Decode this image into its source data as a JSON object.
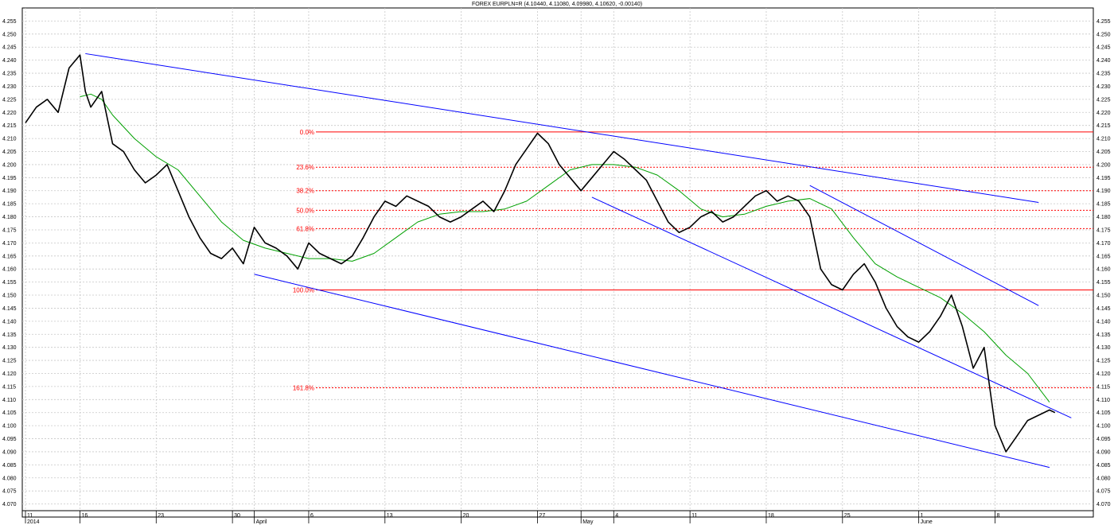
{
  "chart_data": {
    "type": "line",
    "title": "FOREX EURPLN=R (4.10440, 4.11080, 4.09980, 4.10620, -0.00140)",
    "ylim": [
      4.065,
      4.26
    ],
    "y_ticks": [
      "4.070",
      "4.075",
      "4.080",
      "4.085",
      "4.090",
      "4.095",
      "4.100",
      "4.105",
      "4.110",
      "4.115",
      "4.120",
      "4.125",
      "4.130",
      "4.135",
      "4.140",
      "4.145",
      "4.150",
      "4.155",
      "4.160",
      "4.165",
      "4.170",
      "4.175",
      "4.180",
      "4.185",
      "4.190",
      "4.195",
      "4.200",
      "4.205",
      "4.210",
      "4.215",
      "4.220",
      "4.225",
      "4.230",
      "4.235",
      "4.240",
      "4.245",
      "4.250",
      "4.255"
    ],
    "xlim": [
      0,
      97
    ],
    "x_ticks": [
      {
        "t": 0,
        "label": "11",
        "sub": "2014"
      },
      {
        "t": 5,
        "label": "16",
        "sub": ""
      },
      {
        "t": 12,
        "label": "23",
        "sub": ""
      },
      {
        "t": 19,
        "label": "30",
        "sub": ""
      },
      {
        "t": 21,
        "label": "",
        "sub": "April"
      },
      {
        "t": 26,
        "label": "6",
        "sub": ""
      },
      {
        "t": 33,
        "label": "13",
        "sub": ""
      },
      {
        "t": 40,
        "label": "20",
        "sub": ""
      },
      {
        "t": 47,
        "label": "27",
        "sub": ""
      },
      {
        "t": 51,
        "label": "",
        "sub": "May"
      },
      {
        "t": 54,
        "label": "4",
        "sub": ""
      },
      {
        "t": 61,
        "label": "11",
        "sub": ""
      },
      {
        "t": 68,
        "label": "18",
        "sub": ""
      },
      {
        "t": 75,
        "label": "25",
        "sub": ""
      },
      {
        "t": 82,
        "label": "1",
        "sub": "June"
      },
      {
        "t": 89,
        "label": "8",
        "sub": ""
      }
    ],
    "series": [
      {
        "role": "price",
        "color": "#000000",
        "x": [
          0,
          1,
          2,
          3,
          4,
          5,
          5.5,
          6,
          7,
          8,
          9,
          10,
          11,
          12,
          13,
          14,
          15,
          16,
          17,
          18,
          19,
          20,
          21,
          22,
          23,
          24,
          25,
          26,
          27,
          28,
          29,
          30,
          31,
          32,
          33,
          34,
          35,
          36,
          37,
          38,
          39,
          40,
          41,
          42,
          43,
          44,
          45,
          46,
          47,
          48,
          49,
          50,
          51,
          52,
          53,
          54,
          55,
          56,
          57,
          58,
          59,
          60,
          61,
          62,
          63,
          64,
          65,
          66,
          67,
          68,
          69,
          70,
          71,
          72,
          73,
          74,
          75,
          76,
          77,
          78,
          79,
          80,
          81,
          82,
          83,
          84,
          85,
          86,
          87,
          88,
          89,
          90,
          91,
          92,
          93,
          94,
          94.5
        ],
        "values": [
          4.216,
          4.222,
          4.225,
          4.22,
          4.237,
          4.242,
          4.228,
          4.222,
          4.228,
          4.208,
          4.205,
          4.198,
          4.193,
          4.196,
          4.2,
          4.19,
          4.18,
          4.172,
          4.166,
          4.164,
          4.168,
          4.162,
          4.176,
          4.17,
          4.168,
          4.165,
          4.16,
          4.17,
          4.166,
          4.164,
          4.162,
          4.165,
          4.172,
          4.18,
          4.186,
          4.184,
          4.188,
          4.186,
          4.184,
          4.18,
          4.178,
          4.18,
          4.183,
          4.186,
          4.182,
          4.19,
          4.2,
          4.206,
          4.212,
          4.208,
          4.2,
          4.195,
          4.19,
          4.195,
          4.2,
          4.205,
          4.202,
          4.198,
          4.194,
          4.186,
          4.178,
          4.174,
          4.176,
          4.18,
          4.182,
          4.178,
          4.18,
          4.184,
          4.188,
          4.19,
          4.186,
          4.188,
          4.186,
          4.18,
          4.16,
          4.154,
          4.152,
          4.158,
          4.162,
          4.155,
          4.145,
          4.138,
          4.134,
          4.132,
          4.136,
          4.142,
          4.15,
          4.138,
          4.122,
          4.13,
          4.1,
          4.09,
          4.096,
          4.102,
          4.104,
          4.106,
          4.105
        ]
      },
      {
        "role": "moving-average",
        "color": "#00a000",
        "x": [
          5,
          6,
          7,
          8,
          10,
          12,
          14,
          16,
          18,
          20,
          22,
          24,
          26,
          28,
          30,
          32,
          34,
          36,
          38,
          40,
          42,
          44,
          46,
          48,
          50,
          52,
          54,
          56,
          58,
          60,
          62,
          64,
          66,
          68,
          70,
          72,
          74,
          76,
          78,
          80,
          82,
          84,
          86,
          88,
          90,
          92,
          94
        ],
        "values": [
          4.226,
          4.227,
          4.225,
          4.219,
          4.21,
          4.203,
          4.198,
          4.188,
          4.178,
          4.171,
          4.168,
          4.166,
          4.164,
          4.164,
          4.163,
          4.166,
          4.172,
          4.178,
          4.181,
          4.182,
          4.182,
          4.183,
          4.186,
          4.192,
          4.198,
          4.2,
          4.2,
          4.199,
          4.196,
          4.19,
          4.183,
          4.18,
          4.181,
          4.184,
          4.186,
          4.187,
          4.183,
          4.172,
          4.162,
          4.157,
          4.153,
          4.149,
          4.143,
          4.136,
          4.127,
          4.12,
          4.109
        ]
      }
    ],
    "trendlines": [
      {
        "color": "#0000ff",
        "x1": 5.5,
        "y1": 4.2425,
        "x2": 93,
        "y2": 4.1855
      },
      {
        "color": "#0000ff",
        "x1": 21,
        "y1": 4.158,
        "x2": 94,
        "y2": 4.084
      },
      {
        "color": "#0000ff",
        "x1": 52,
        "y1": 4.1875,
        "x2": 96,
        "y2": 4.103
      },
      {
        "color": "#0000ff",
        "x1": 72,
        "y1": 4.192,
        "x2": 93,
        "y2": 4.146
      }
    ],
    "fib_levels": [
      {
        "label": "0.0%",
        "value": 4.2125,
        "dashed": false
      },
      {
        "label": "23.6%",
        "value": 4.199,
        "dashed": true
      },
      {
        "label": "38.2%",
        "value": 4.19,
        "dashed": true
      },
      {
        "label": "50.0%",
        "value": 4.1825,
        "dashed": true
      },
      {
        "label": "61.8%",
        "value": 4.1755,
        "dashed": true
      },
      {
        "label": "100.0%",
        "value": 4.152,
        "dashed": false
      },
      {
        "label": "161.8%",
        "value": 4.1145,
        "dashed": true
      }
    ],
    "fib_color": "#ff0000",
    "grid": true,
    "grid_color": "#c8c8c8"
  }
}
